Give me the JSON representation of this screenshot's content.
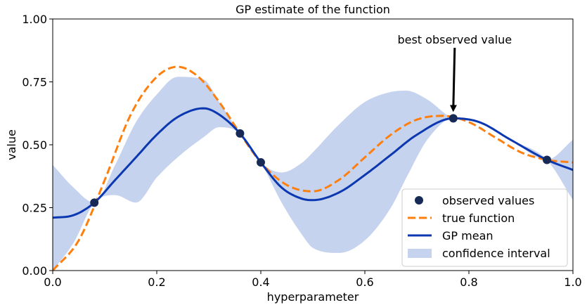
{
  "chart_data": {
    "type": "line",
    "title": "GP estimate of the function",
    "xlabel": "hyperparameter",
    "ylabel": "value",
    "xlim": [
      0,
      1
    ],
    "ylim": [
      0,
      1
    ],
    "x_ticks": [
      "0.0",
      "0.2",
      "0.4",
      "0.6",
      "0.8",
      "1.0"
    ],
    "y_ticks": [
      "0.00",
      "0.25",
      "0.50",
      "0.75",
      "1.00"
    ],
    "grid": false,
    "legend_position": "bottom-right",
    "legend": [
      {
        "label": "observed values",
        "kind": "marker",
        "color": "#162a55"
      },
      {
        "label": "true function",
        "kind": "dashed",
        "color": "#ff7f0e"
      },
      {
        "label": "GP mean",
        "kind": "line",
        "color": "#0b38b0"
      },
      {
        "label": "confidence interval",
        "kind": "patch",
        "color": "#c6d3ee"
      }
    ],
    "annotation": {
      "text": "best observed value",
      "x": 0.77,
      "y": 0.605
    },
    "observed": {
      "x": [
        0.08,
        0.36,
        0.4,
        0.77,
        0.95
      ],
      "y": [
        0.27,
        0.545,
        0.43,
        0.605,
        0.44
      ]
    },
    "true_function": {
      "x": [
        0.0,
        0.05,
        0.1,
        0.15,
        0.2,
        0.24,
        0.28,
        0.32,
        0.36,
        0.4,
        0.45,
        0.5,
        0.55,
        0.6,
        0.65,
        0.7,
        0.75,
        0.8,
        0.85,
        0.9,
        0.95,
        1.0
      ],
      "y": [
        0.0,
        0.12,
        0.36,
        0.62,
        0.77,
        0.81,
        0.77,
        0.67,
        0.545,
        0.43,
        0.34,
        0.315,
        0.36,
        0.45,
        0.54,
        0.6,
        0.615,
        0.59,
        0.53,
        0.47,
        0.44,
        0.43
      ]
    },
    "gp_mean": {
      "x": [
        0.0,
        0.04,
        0.08,
        0.12,
        0.16,
        0.2,
        0.24,
        0.29,
        0.32,
        0.36,
        0.4,
        0.44,
        0.48,
        0.5,
        0.55,
        0.6,
        0.65,
        0.7,
        0.77,
        0.82,
        0.88,
        0.95,
        1.0
      ],
      "y": [
        0.21,
        0.22,
        0.27,
        0.36,
        0.45,
        0.54,
        0.61,
        0.645,
        0.62,
        0.545,
        0.43,
        0.33,
        0.285,
        0.28,
        0.31,
        0.38,
        0.46,
        0.54,
        0.605,
        0.59,
        0.52,
        0.44,
        0.4
      ]
    },
    "confidence_interval": {
      "x": [
        0.0,
        0.04,
        0.08,
        0.12,
        0.16,
        0.2,
        0.24,
        0.29,
        0.32,
        0.36,
        0.4,
        0.44,
        0.48,
        0.5,
        0.55,
        0.6,
        0.65,
        0.68,
        0.72,
        0.77,
        0.82,
        0.88,
        0.95,
        1.0
      ],
      "upper": [
        0.42,
        0.33,
        0.27,
        0.42,
        0.59,
        0.7,
        0.77,
        0.76,
        0.67,
        0.545,
        0.43,
        0.39,
        0.43,
        0.47,
        0.58,
        0.67,
        0.71,
        0.715,
        0.68,
        0.605,
        0.59,
        0.52,
        0.44,
        0.52
      ],
      "lower": [
        0.0,
        0.11,
        0.27,
        0.3,
        0.27,
        0.37,
        0.45,
        0.53,
        0.57,
        0.545,
        0.43,
        0.27,
        0.14,
        0.09,
        0.07,
        0.12,
        0.25,
        0.37,
        0.52,
        0.605,
        0.59,
        0.52,
        0.44,
        0.28
      ]
    }
  }
}
